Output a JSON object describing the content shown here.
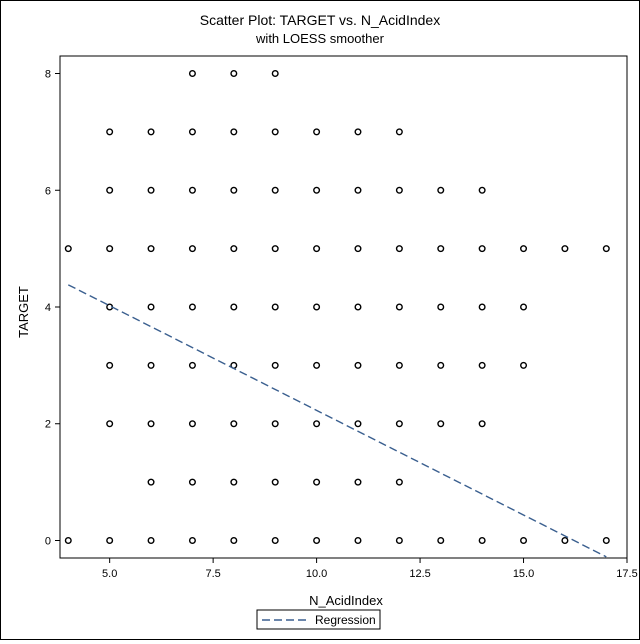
{
  "chart_data": {
    "type": "scatter",
    "title": "Scatter Plot: TARGET vs. N_AcidIndex",
    "subtitle": "with LOESS smoother",
    "xlabel": "N_AcidIndex",
    "ylabel": "TARGET",
    "xlim": [
      3.8,
      17.5
    ],
    "ylim": [
      -0.3,
      8.3
    ],
    "xticks": [
      5.0,
      7.5,
      10.0,
      12.5,
      15.0,
      17.5
    ],
    "xtick_labels": [
      "5.0",
      "7.5",
      "10.0",
      "12.5",
      "15.0",
      "17.5"
    ],
    "yticks": [
      0,
      2,
      4,
      6,
      8
    ],
    "ytick_labels": [
      "0",
      "2",
      "4",
      "6",
      "8"
    ],
    "grid": false,
    "legend": "bottom-center",
    "marker_color": "#000000",
    "points": [
      {
        "x": 4,
        "y": 0
      },
      {
        "x": 4,
        "y": 5
      },
      {
        "x": 5,
        "y": 0
      },
      {
        "x": 5,
        "y": 2
      },
      {
        "x": 5,
        "y": 3
      },
      {
        "x": 5,
        "y": 4
      },
      {
        "x": 5,
        "y": 5
      },
      {
        "x": 5,
        "y": 6
      },
      {
        "x": 5,
        "y": 7
      },
      {
        "x": 6,
        "y": 0
      },
      {
        "x": 6,
        "y": 1
      },
      {
        "x": 6,
        "y": 2
      },
      {
        "x": 6,
        "y": 3
      },
      {
        "x": 6,
        "y": 4
      },
      {
        "x": 6,
        "y": 5
      },
      {
        "x": 6,
        "y": 6
      },
      {
        "x": 6,
        "y": 7
      },
      {
        "x": 7,
        "y": 0
      },
      {
        "x": 7,
        "y": 1
      },
      {
        "x": 7,
        "y": 2
      },
      {
        "x": 7,
        "y": 3
      },
      {
        "x": 7,
        "y": 4
      },
      {
        "x": 7,
        "y": 5
      },
      {
        "x": 7,
        "y": 6
      },
      {
        "x": 7,
        "y": 7
      },
      {
        "x": 7,
        "y": 8
      },
      {
        "x": 8,
        "y": 0
      },
      {
        "x": 8,
        "y": 1
      },
      {
        "x": 8,
        "y": 2
      },
      {
        "x": 8,
        "y": 3
      },
      {
        "x": 8,
        "y": 4
      },
      {
        "x": 8,
        "y": 5
      },
      {
        "x": 8,
        "y": 6
      },
      {
        "x": 8,
        "y": 7
      },
      {
        "x": 8,
        "y": 8
      },
      {
        "x": 9,
        "y": 0
      },
      {
        "x": 9,
        "y": 1
      },
      {
        "x": 9,
        "y": 2
      },
      {
        "x": 9,
        "y": 3
      },
      {
        "x": 9,
        "y": 4
      },
      {
        "x": 9,
        "y": 5
      },
      {
        "x": 9,
        "y": 6
      },
      {
        "x": 9,
        "y": 7
      },
      {
        "x": 9,
        "y": 8
      },
      {
        "x": 10,
        "y": 0
      },
      {
        "x": 10,
        "y": 1
      },
      {
        "x": 10,
        "y": 2
      },
      {
        "x": 10,
        "y": 3
      },
      {
        "x": 10,
        "y": 4
      },
      {
        "x": 10,
        "y": 5
      },
      {
        "x": 10,
        "y": 6
      },
      {
        "x": 10,
        "y": 7
      },
      {
        "x": 11,
        "y": 0
      },
      {
        "x": 11,
        "y": 1
      },
      {
        "x": 11,
        "y": 2
      },
      {
        "x": 11,
        "y": 3
      },
      {
        "x": 11,
        "y": 4
      },
      {
        "x": 11,
        "y": 5
      },
      {
        "x": 11,
        "y": 6
      },
      {
        "x": 11,
        "y": 7
      },
      {
        "x": 12,
        "y": 0
      },
      {
        "x": 12,
        "y": 1
      },
      {
        "x": 12,
        "y": 2
      },
      {
        "x": 12,
        "y": 3
      },
      {
        "x": 12,
        "y": 4
      },
      {
        "x": 12,
        "y": 5
      },
      {
        "x": 12,
        "y": 6
      },
      {
        "x": 12,
        "y": 7
      },
      {
        "x": 13,
        "y": 0
      },
      {
        "x": 13,
        "y": 2
      },
      {
        "x": 13,
        "y": 3
      },
      {
        "x": 13,
        "y": 4
      },
      {
        "x": 13,
        "y": 5
      },
      {
        "x": 13,
        "y": 6
      },
      {
        "x": 14,
        "y": 0
      },
      {
        "x": 14,
        "y": 2
      },
      {
        "x": 14,
        "y": 3
      },
      {
        "x": 14,
        "y": 4
      },
      {
        "x": 14,
        "y": 5
      },
      {
        "x": 14,
        "y": 6
      },
      {
        "x": 15,
        "y": 0
      },
      {
        "x": 15,
        "y": 3
      },
      {
        "x": 15,
        "y": 4
      },
      {
        "x": 15,
        "y": 5
      },
      {
        "x": 16,
        "y": 0
      },
      {
        "x": 16,
        "y": 5
      },
      {
        "x": 17,
        "y": 0
      },
      {
        "x": 17,
        "y": 5
      }
    ],
    "series": [
      {
        "name": "Regression",
        "type": "line",
        "style": "dashed",
        "color": "#3a5f8f",
        "x": [
          4,
          17
        ],
        "y": [
          4.38,
          -0.28
        ]
      }
    ]
  }
}
